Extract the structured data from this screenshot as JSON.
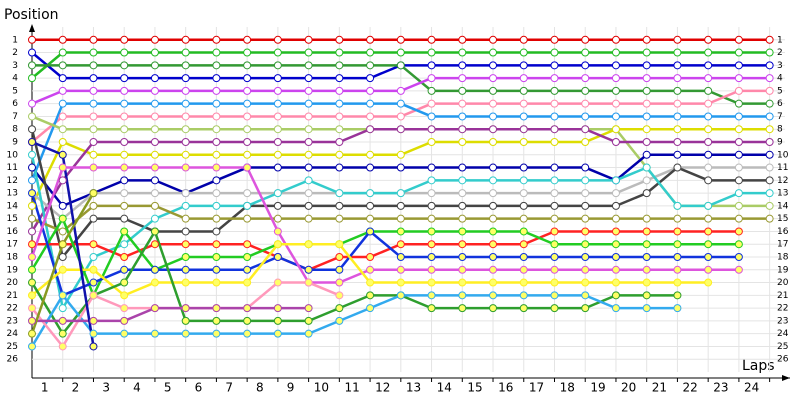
{
  "chart_data": {
    "type": "line",
    "y_label": "Position",
    "x_label": "Laps",
    "x": [
      0,
      1,
      2,
      3,
      4,
      5,
      6,
      7,
      8,
      9,
      10,
      11,
      12,
      13,
      14,
      15,
      16,
      17,
      18,
      19,
      20,
      21,
      22,
      23,
      24
    ],
    "xlim": [
      0,
      24.5
    ],
    "xticks": [
      1,
      2,
      3,
      4,
      5,
      6,
      7,
      8,
      9,
      10,
      11,
      12,
      13,
      14,
      15,
      16,
      17,
      18,
      19,
      20,
      21,
      22,
      23,
      24
    ],
    "ylim": [
      0,
      27
    ],
    "y_reversed": true,
    "yticks": [
      1,
      2,
      3,
      4,
      5,
      6,
      7,
      8,
      9,
      10,
      11,
      12,
      13,
      14,
      15,
      16,
      17,
      18,
      19,
      20,
      21,
      22,
      23,
      24,
      25,
      26
    ],
    "grid": true,
    "series": [
      {
        "color": "#e00000",
        "values": [
          1,
          1,
          1,
          1,
          1,
          1,
          1,
          1,
          1,
          1,
          1,
          1,
          1,
          1,
          1,
          1,
          1,
          1,
          1,
          1,
          1,
          1,
          1,
          1,
          1
        ]
      },
      {
        "color": "#22bb22",
        "values": [
          4,
          2,
          2,
          2,
          2,
          2,
          2,
          2,
          2,
          2,
          2,
          2,
          2,
          2,
          2,
          2,
          2,
          2,
          2,
          2,
          2,
          2,
          2,
          2,
          2
        ]
      },
      {
        "color": "#0000cc",
        "values": [
          2,
          4,
          4,
          4,
          4,
          4,
          4,
          4,
          4,
          4,
          4,
          4,
          3,
          3,
          3,
          3,
          3,
          3,
          3,
          3,
          3,
          3,
          3,
          3,
          3
        ]
      },
      {
        "color": "#339933",
        "values": [
          3,
          3,
          3,
          3,
          3,
          3,
          3,
          3,
          3,
          3,
          3,
          3,
          3,
          5,
          5,
          5,
          5,
          5,
          5,
          5,
          5,
          5,
          5,
          6,
          6
        ]
      },
      {
        "color": "#cc44ee",
        "values": [
          6,
          5,
          5,
          5,
          5,
          5,
          5,
          5,
          5,
          5,
          5,
          5,
          5,
          4,
          4,
          4,
          4,
          4,
          4,
          4,
          4,
          4,
          4,
          4,
          4
        ]
      },
      {
        "color": "#ff88aa",
        "values": [
          9,
          7,
          7,
          7,
          7,
          7,
          7,
          7,
          7,
          7,
          7,
          7,
          7,
          6,
          6,
          6,
          6,
          6,
          6,
          6,
          6,
          6,
          6,
          5,
          5
        ]
      },
      {
        "color": "#2299ee",
        "values": [
          12,
          6,
          6,
          6,
          6,
          6,
          6,
          6,
          6,
          6,
          6,
          6,
          6,
          7,
          7,
          7,
          7,
          7,
          7,
          7,
          7,
          7,
          7,
          7,
          7
        ]
      },
      {
        "color": "#aacc66",
        "values": [
          7,
          8,
          8,
          8,
          8,
          8,
          8,
          8,
          8,
          8,
          8,
          8,
          8,
          8,
          8,
          8,
          8,
          8,
          8,
          8,
          11,
          14,
          14,
          14,
          14
        ]
      },
      {
        "color": "#dddd00",
        "values": [
          14,
          9,
          10,
          10,
          10,
          10,
          10,
          10,
          10,
          10,
          10,
          10,
          10,
          9,
          9,
          9,
          9,
          9,
          9,
          8,
          8,
          8,
          8,
          8,
          8
        ]
      },
      {
        "color": "#993399",
        "values": [
          16,
          12,
          9,
          9,
          9,
          9,
          9,
          9,
          9,
          9,
          9,
          8,
          8,
          8,
          8,
          8,
          8,
          8,
          8,
          9,
          9,
          9,
          9,
          9,
          9
        ]
      },
      {
        "color": "#0000aa",
        "values": [
          11,
          14,
          13,
          12,
          12,
          13,
          12,
          11,
          11,
          11,
          11,
          11,
          11,
          11,
          11,
          11,
          11,
          11,
          11,
          12,
          10,
          10,
          10,
          10,
          10
        ]
      },
      {
        "color": "#bbbbbb",
        "values": [
          13,
          15,
          13,
          13,
          13,
          13,
          13,
          13,
          13,
          13,
          13,
          13,
          13,
          13,
          13,
          13,
          13,
          13,
          13,
          13,
          12,
          11,
          11,
          11,
          11
        ]
      },
      {
        "color": "#444444",
        "values": [
          8,
          18,
          15,
          15,
          16,
          16,
          16,
          14,
          14,
          14,
          14,
          14,
          14,
          14,
          14,
          14,
          14,
          14,
          14,
          14,
          13,
          11,
          12,
          12,
          12
        ]
      },
      {
        "color": "#33cccc",
        "values": [
          10,
          22,
          18,
          17,
          15,
          14,
          14,
          14,
          13,
          12,
          13,
          13,
          13,
          12,
          12,
          12,
          12,
          12,
          12,
          12,
          11,
          14,
          14,
          13,
          13
        ]
      },
      {
        "color": "#999933",
        "values": [
          15,
          16,
          14,
          14,
          14,
          15,
          15,
          15,
          15,
          15,
          15,
          15,
          15,
          15,
          15,
          15,
          15,
          15,
          15,
          15,
          15,
          15,
          15,
          15,
          15
        ]
      },
      {
        "color": "#ff2222",
        "values": [
          17,
          17,
          17,
          18,
          17,
          17,
          17,
          17,
          18,
          19,
          18,
          18,
          17,
          17,
          17,
          17,
          17,
          16,
          16,
          16,
          16,
          16,
          16,
          16,
          null
        ]
      },
      {
        "color": "#22cc22",
        "values": [
          19,
          15,
          21,
          16,
          19,
          18,
          18,
          18,
          17,
          17,
          17,
          16,
          16,
          16,
          16,
          16,
          16,
          17,
          17,
          17,
          17,
          17,
          17,
          17,
          null
        ]
      },
      {
        "color": "#1133dd",
        "values": [
          13,
          21,
          20,
          19,
          19,
          19,
          19,
          19,
          18,
          19,
          19,
          16,
          18,
          18,
          18,
          18,
          18,
          18,
          18,
          18,
          18,
          18,
          18,
          18,
          null
        ]
      },
      {
        "color": "#dd55dd",
        "values": [
          18,
          11,
          11,
          11,
          11,
          11,
          11,
          11,
          16,
          20,
          20,
          19,
          19,
          19,
          19,
          19,
          19,
          19,
          19,
          19,
          19,
          19,
          19,
          19,
          null
        ]
      },
      {
        "color": "#ffee22",
        "values": [
          21,
          19,
          19,
          21,
          20,
          20,
          20,
          20,
          17,
          17,
          17,
          20,
          20,
          20,
          20,
          20,
          20,
          20,
          20,
          20,
          20,
          20,
          20,
          null,
          null
        ]
      },
      {
        "color": "#2e9e2e",
        "values": [
          20,
          24,
          21,
          20,
          16,
          23,
          23,
          23,
          23,
          23,
          22,
          21,
          21,
          22,
          22,
          22,
          22,
          22,
          22,
          21,
          21,
          21,
          null,
          null,
          null
        ]
      },
      {
        "color": "#33aaee",
        "values": [
          25,
          21,
          24,
          24,
          24,
          24,
          24,
          24,
          24,
          24,
          23,
          22,
          21,
          21,
          21,
          21,
          21,
          21,
          21,
          22,
          22,
          22,
          null,
          null,
          null
        ]
      },
      {
        "color": "#ff99bb",
        "values": [
          22,
          25,
          21,
          22,
          22,
          22,
          22,
          22,
          20,
          20,
          21,
          null,
          null,
          null,
          null,
          null,
          null,
          null,
          null,
          null,
          null,
          null,
          null,
          null,
          null
        ]
      },
      {
        "color": "#aa44aa",
        "values": [
          23,
          23,
          23,
          23,
          22,
          22,
          22,
          22,
          22,
          22,
          null,
          null,
          null,
          null,
          null,
          null,
          null,
          null,
          null,
          null,
          null,
          null,
          null,
          null,
          null
        ]
      },
      {
        "color": "#1111aa",
        "values": [
          9,
          10,
          25,
          null,
          null,
          null,
          null,
          null,
          null,
          null,
          null,
          null,
          null,
          null,
          null,
          null,
          null,
          null,
          null,
          null,
          null,
          null,
          null,
          null,
          null
        ]
      },
      {
        "color": "#889922",
        "values": [
          24,
          17,
          13,
          null,
          null,
          null,
          null,
          null,
          null,
          null,
          null,
          null,
          null,
          null,
          null,
          null,
          null,
          null,
          null,
          null,
          null,
          null,
          null,
          null,
          null
        ]
      }
    ]
  }
}
